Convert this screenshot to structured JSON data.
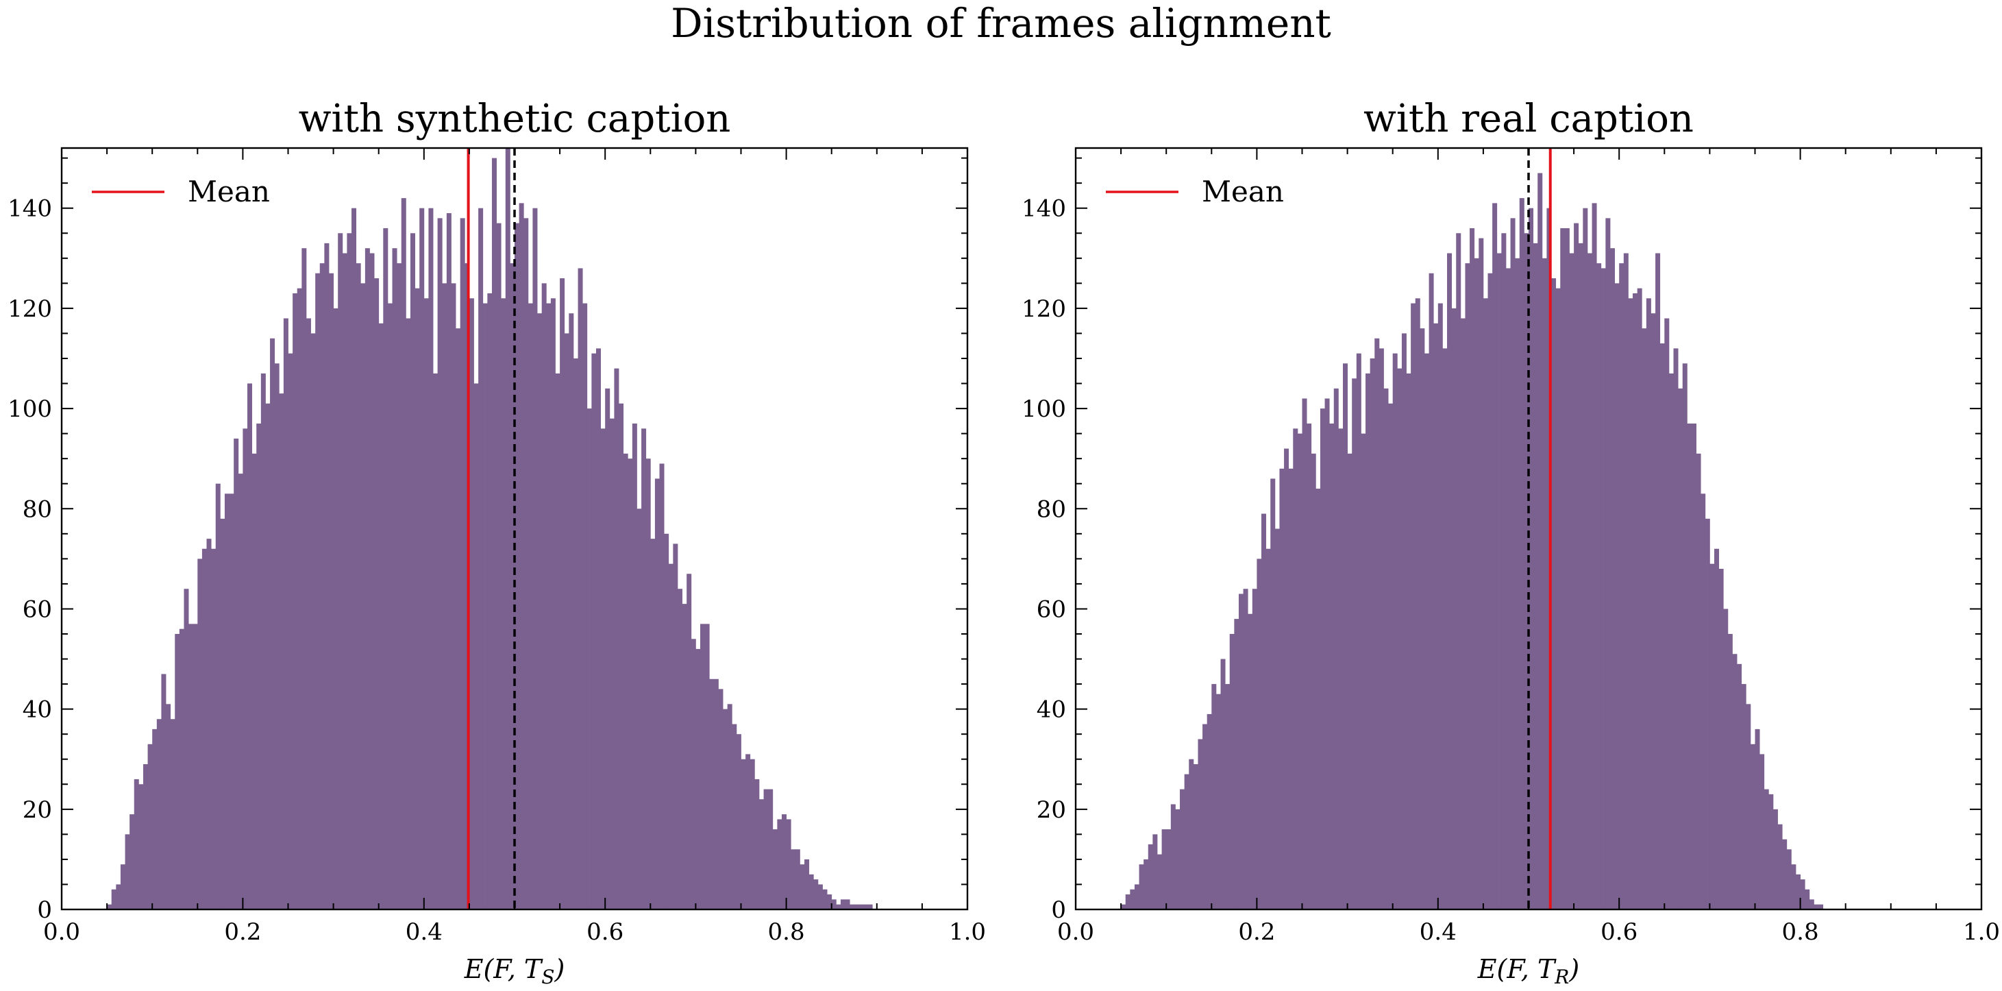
{
  "figure": {
    "suptitle": "Distribution of frames alignment"
  },
  "chart_data": [
    {
      "type": "histogram",
      "title": "with synthetic caption",
      "xlabel": "E(F, T_S)",
      "xlabel_parts": [
        "E(F, T",
        "S",
        ")"
      ],
      "ylabel": "",
      "xlim": [
        0.0,
        1.0
      ],
      "ylim": [
        0,
        152
      ],
      "xticks": [
        "0.0",
        "0.2",
        "0.4",
        "0.6",
        "0.8",
        "1.0"
      ],
      "yticks": [
        "0",
        "20",
        "40",
        "60",
        "80",
        "100",
        "120",
        "140"
      ],
      "bin_start": 0.0,
      "bin_width": 0.005,
      "bar_color": "#7b618f",
      "mean": 0.449,
      "mean_color": "#e3121b",
      "reference_line": 0.5,
      "legend": {
        "label": "Mean",
        "position": "top-left"
      },
      "grid": false,
      "counts": [
        0,
        0,
        0,
        0,
        0,
        0,
        0,
        0,
        0,
        0,
        1,
        4,
        5,
        9,
        15,
        19,
        26,
        25,
        29,
        33,
        36,
        38,
        47,
        41,
        38,
        55,
        56,
        64,
        57,
        57,
        70,
        72,
        74,
        72,
        85,
        78,
        83,
        83,
        94,
        87,
        96,
        105,
        91,
        97,
        107,
        101,
        114,
        109,
        103,
        118,
        111,
        123,
        124,
        132,
        118,
        115,
        127,
        129,
        133,
        127,
        120,
        135,
        131,
        135,
        140,
        129,
        125,
        132,
        131,
        126,
        117,
        136,
        121,
        132,
        129,
        142,
        118,
        135,
        124,
        140,
        122,
        140,
        107,
        138,
        125,
        139,
        125,
        116,
        138,
        129,
        122,
        105,
        140,
        121,
        123,
        150,
        137,
        122,
        152,
        129,
        137,
        141,
        138,
        121,
        140,
        119,
        125,
        121,
        122,
        107,
        126,
        115,
        119,
        110,
        128,
        121,
        100,
        111,
        112,
        96,
        104,
        98,
        108,
        101,
        91,
        90,
        97,
        80,
        96,
        90,
        74,
        86,
        89,
        75,
        69,
        73,
        64,
        61,
        67,
        54,
        52,
        57,
        57,
        46,
        46,
        44,
        40,
        41,
        37,
        35,
        30,
        31,
        30,
        26,
        22,
        24,
        24,
        16,
        18,
        19,
        18,
        12,
        12,
        9,
        10,
        7,
        6,
        5,
        4,
        3,
        2,
        1,
        2,
        2,
        1,
        1,
        1,
        1,
        1,
        0
      ]
    },
    {
      "type": "histogram",
      "title": "with real caption",
      "xlabel": "E(F, T_R)",
      "xlabel_parts": [
        "E(F, T",
        "R",
        ")"
      ],
      "ylabel": "",
      "xlim": [
        0.0,
        1.0
      ],
      "ylim": [
        0,
        152
      ],
      "xticks": [
        "0.0",
        "0.2",
        "0.4",
        "0.6",
        "0.8",
        "1.0"
      ],
      "yticks": [
        "0",
        "20",
        "40",
        "60",
        "80",
        "100",
        "120",
        "140"
      ],
      "bin_start": 0.0,
      "bin_width": 0.005,
      "bar_color": "#7b618f",
      "mean": 0.524,
      "mean_color": "#e3121b",
      "reference_line": 0.5,
      "legend": {
        "label": "Mean",
        "position": "top-left"
      },
      "grid": false,
      "counts": [
        0,
        0,
        0,
        0,
        0,
        0,
        0,
        0,
        0,
        0,
        1,
        3,
        4,
        5,
        9,
        10,
        13,
        15,
        11,
        16,
        16,
        21,
        20,
        24,
        27,
        30,
        29,
        34,
        37,
        39,
        45,
        43,
        50,
        45,
        55,
        58,
        63,
        64,
        59,
        64,
        70,
        79,
        72,
        86,
        76,
        88,
        92,
        88,
        96,
        95,
        102,
        97,
        91,
        84,
        100,
        102,
        97,
        104,
        96,
        109,
        91,
        106,
        111,
        95,
        107,
        110,
        114,
        112,
        104,
        101,
        111,
        108,
        115,
        107,
        121,
        122,
        116,
        111,
        127,
        117,
        121,
        112,
        131,
        120,
        135,
        118,
        129,
        136,
        130,
        134,
        122,
        127,
        141,
        131,
        135,
        128,
        138,
        130,
        142,
        135,
        140,
        133,
        147,
        130,
        140,
        126,
        124,
        136,
        136,
        131,
        137,
        133,
        140,
        131,
        141,
        129,
        128,
        138,
        132,
        125,
        129,
        131,
        122,
        123,
        124,
        116,
        122,
        119,
        131,
        113,
        118,
        107,
        112,
        104,
        109,
        97,
        97,
        91,
        83,
        78,
        69,
        72,
        68,
        60,
        55,
        51,
        49,
        45,
        41,
        33,
        36,
        31,
        24,
        23,
        20,
        17,
        14,
        12,
        9,
        7,
        6,
        4,
        2,
        1,
        1,
        0
      ]
    }
  ]
}
